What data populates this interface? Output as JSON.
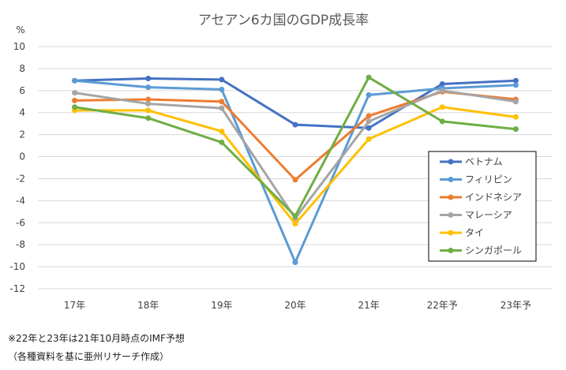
{
  "chart_data": {
    "type": "line",
    "title": "アセアン6カ国のGDP成長率",
    "ylabel": "%",
    "xlabel": "",
    "ylim": [
      -12,
      10
    ],
    "yticks": [
      10,
      8,
      6,
      4,
      2,
      0,
      -2,
      -4,
      -6,
      -8,
      -10,
      -12
    ],
    "categories": [
      "17年",
      "18年",
      "19年",
      "20年",
      "21年",
      "22年予",
      "23年予"
    ],
    "grid": true,
    "legend_position": "right",
    "series": [
      {
        "name": "ベトナム",
        "color": "#4472c4",
        "values": [
          6.9,
          7.1,
          7.0,
          2.9,
          2.6,
          6.6,
          6.9
        ]
      },
      {
        "name": "フィリピン",
        "color": "#5b9bd5",
        "values": [
          6.9,
          6.3,
          6.1,
          -9.6,
          5.6,
          6.2,
          6.5
        ]
      },
      {
        "name": "インドネシア",
        "color": "#ed7d31",
        "values": [
          5.1,
          5.2,
          5.0,
          -2.1,
          3.7,
          5.9,
          5.2
        ]
      },
      {
        "name": "マレーシア",
        "color": "#a5a5a5",
        "values": [
          5.8,
          4.8,
          4.4,
          -5.6,
          3.2,
          6.0,
          5.0
        ]
      },
      {
        "name": "タイ",
        "color": "#ffc000",
        "values": [
          4.2,
          4.2,
          2.3,
          -6.1,
          1.6,
          4.5,
          3.6
        ]
      },
      {
        "name": "シンガポール",
        "color": "#70ad47",
        "values": [
          4.5,
          3.5,
          1.3,
          -5.4,
          7.2,
          3.2,
          2.5
        ]
      }
    ]
  },
  "footnotes": {
    "note1": "※22年と23年は21年10月時点のIMF予想",
    "note2": "（各種資料を基に亜州リサーチ作成）"
  }
}
